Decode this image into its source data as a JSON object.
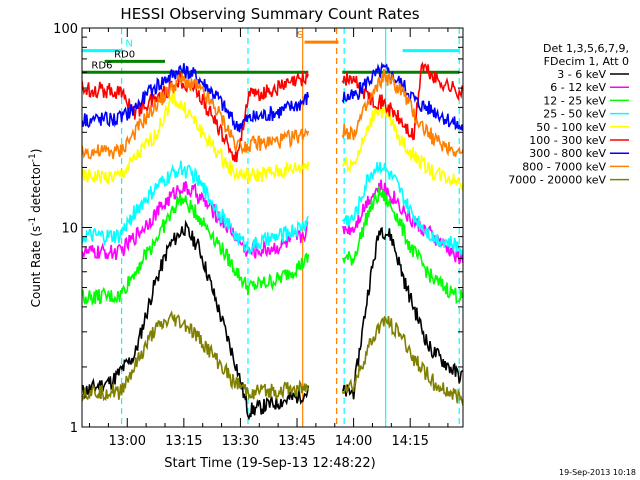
{
  "chart_data": {
    "type": "line",
    "title": "HESSI Observing Summary Count Rates",
    "xlabel": "Start Time (19-Sep-13 12:48:22)",
    "ylabel_main": "Count Rate (s",
    "ylabel_sup1": "-1",
    "ylabel_mid": " detector",
    "ylabel_sup2": "-1",
    "ylabel_end": ")",
    "footer_date": "19-Sep-2013 10:18",
    "yscale": "log",
    "ylim": [
      1,
      100
    ],
    "y_ticks": [
      {
        "value": 1,
        "label": "1"
      },
      {
        "value": 10,
        "label": "10"
      },
      {
        "value": 100,
        "label": "100"
      }
    ],
    "x_ticks": [
      {
        "minute": 12,
        "label": "13:00"
      },
      {
        "minute": 27,
        "label": "13:15"
      },
      {
        "minute": 42,
        "label": "13:30"
      },
      {
        "minute": 57,
        "label": "13:45"
      },
      {
        "minute": 72,
        "label": "14:00"
      },
      {
        "minute": 87,
        "label": "14:15"
      }
    ],
    "xlim_minutes": [
      0,
      101
    ],
    "legend_header": [
      "Det 1,3,5,6,7,9,",
      "FDecim 1, Att 0"
    ],
    "legend_position": "right",
    "series": [
      {
        "name": "3 - 6 keV",
        "color": "#000000",
        "points": [
          [
            0,
            1.5
          ],
          [
            8,
            1.7
          ],
          [
            14,
            2.3
          ],
          [
            19,
            5
          ],
          [
            23,
            8
          ],
          [
            27,
            10
          ],
          [
            31,
            8
          ],
          [
            36,
            4
          ],
          [
            41,
            2
          ],
          [
            44,
            1.2
          ],
          [
            50,
            1.3
          ],
          [
            56,
            1.4
          ],
          [
            60,
            1.5
          ],
          [
            72,
            1.5
          ],
          [
            76,
            5
          ],
          [
            79,
            10
          ],
          [
            82,
            9
          ],
          [
            86,
            5
          ],
          [
            92,
            2.5
          ],
          [
            100,
            1.8
          ]
        ]
      },
      {
        "name": "6 - 12 keV",
        "color": "#ff00ff",
        "points": [
          [
            0,
            7.5
          ],
          [
            10,
            7.5
          ],
          [
            14,
            9
          ],
          [
            20,
            12
          ],
          [
            26,
            16
          ],
          [
            30,
            15
          ],
          [
            35,
            12
          ],
          [
            41,
            9
          ],
          [
            44,
            7.5
          ],
          [
            52,
            8
          ],
          [
            58,
            9
          ],
          [
            60,
            10
          ],
          [
            72,
            10
          ],
          [
            76,
            14
          ],
          [
            79,
            16
          ],
          [
            83,
            14
          ],
          [
            87,
            11
          ],
          [
            93,
            9
          ],
          [
            100,
            7
          ]
        ]
      },
      {
        "name": "12 - 25 keV",
        "color": "#00ff00",
        "points": [
          [
            0,
            4.5
          ],
          [
            10,
            4.5
          ],
          [
            14,
            6
          ],
          [
            20,
            9
          ],
          [
            26,
            14
          ],
          [
            30,
            12
          ],
          [
            35,
            9
          ],
          [
            41,
            6
          ],
          [
            44,
            5
          ],
          [
            52,
            5.5
          ],
          [
            58,
            6.5
          ],
          [
            60,
            7
          ],
          [
            72,
            7
          ],
          [
            76,
            12
          ],
          [
            79,
            15
          ],
          [
            83,
            12
          ],
          [
            87,
            8
          ],
          [
            93,
            5.5
          ],
          [
            100,
            4.5
          ]
        ]
      },
      {
        "name": "25 - 50 keV",
        "color": "#00ffff",
        "points": [
          [
            0,
            9
          ],
          [
            10,
            9
          ],
          [
            14,
            12
          ],
          [
            20,
            16
          ],
          [
            26,
            20
          ],
          [
            30,
            18
          ],
          [
            35,
            13
          ],
          [
            41,
            9
          ],
          [
            44,
            8
          ],
          [
            52,
            9
          ],
          [
            58,
            10
          ],
          [
            60,
            11
          ],
          [
            72,
            11
          ],
          [
            76,
            18
          ],
          [
            79,
            21
          ],
          [
            83,
            17
          ],
          [
            87,
            12
          ],
          [
            93,
            9
          ],
          [
            100,
            8
          ]
        ]
      },
      {
        "name": "50 - 100 keV",
        "color": "#ffff00",
        "points": [
          [
            0,
            18
          ],
          [
            10,
            18
          ],
          [
            14,
            22
          ],
          [
            20,
            30
          ],
          [
            24,
            45
          ],
          [
            28,
            38
          ],
          [
            33,
            28
          ],
          [
            40,
            19
          ],
          [
            44,
            18
          ],
          [
            52,
            19
          ],
          [
            58,
            20
          ],
          [
            60,
            21
          ],
          [
            72,
            21
          ],
          [
            75,
            28
          ],
          [
            78,
            40
          ],
          [
            81,
            36
          ],
          [
            86,
            25
          ],
          [
            93,
            19
          ],
          [
            100,
            17
          ]
        ]
      },
      {
        "name": "100 - 300 keV",
        "color": "#ff0000",
        "points": [
          [
            0,
            50
          ],
          [
            10,
            48
          ],
          [
            14,
            38
          ],
          [
            20,
            45
          ],
          [
            26,
            55
          ],
          [
            30,
            50
          ],
          [
            36,
            32
          ],
          [
            41,
            22
          ],
          [
            44,
            45
          ],
          [
            52,
            50
          ],
          [
            58,
            55
          ],
          [
            60,
            58
          ],
          [
            72,
            55
          ],
          [
            76,
            45
          ],
          [
            80,
            42
          ],
          [
            84,
            35
          ],
          [
            88,
            28
          ],
          [
            90,
            65
          ],
          [
            94,
            55
          ],
          [
            100,
            48
          ]
        ]
      },
      {
        "name": "300 - 800 keV",
        "color": "#0000ff",
        "points": [
          [
            0,
            35
          ],
          [
            10,
            35
          ],
          [
            14,
            40
          ],
          [
            20,
            52
          ],
          [
            26,
            62
          ],
          [
            30,
            58
          ],
          [
            36,
            45
          ],
          [
            41,
            32
          ],
          [
            44,
            35
          ],
          [
            52,
            38
          ],
          [
            58,
            42
          ],
          [
            60,
            45
          ],
          [
            72,
            45
          ],
          [
            76,
            55
          ],
          [
            80,
            62
          ],
          [
            85,
            52
          ],
          [
            89,
            42
          ],
          [
            94,
            38
          ],
          [
            100,
            32
          ]
        ]
      },
      {
        "name": "800 - 7000 keV",
        "color": "#ff8000",
        "points": [
          [
            0,
            24
          ],
          [
            10,
            24
          ],
          [
            14,
            30
          ],
          [
            20,
            42
          ],
          [
            26,
            55
          ],
          [
            30,
            52
          ],
          [
            36,
            38
          ],
          [
            41,
            26
          ],
          [
            44,
            26
          ],
          [
            52,
            27
          ],
          [
            58,
            29
          ],
          [
            60,
            31
          ],
          [
            72,
            30
          ],
          [
            76,
            42
          ],
          [
            80,
            58
          ],
          [
            85,
            48
          ],
          [
            89,
            34
          ],
          [
            94,
            27
          ],
          [
            100,
            24
          ]
        ]
      },
      {
        "name": "7000 - 20000 keV",
        "color": "#808000",
        "points": [
          [
            0,
            1.5
          ],
          [
            10,
            1.5
          ],
          [
            14,
            2
          ],
          [
            19,
            3
          ],
          [
            24,
            3.5
          ],
          [
            28,
            3.2
          ],
          [
            33,
            2.5
          ],
          [
            40,
            1.7
          ],
          [
            44,
            1.5
          ],
          [
            72,
            1.6
          ],
          [
            76,
            2.5
          ],
          [
            80,
            3.5
          ],
          [
            84,
            3
          ],
          [
            88,
            2.2
          ],
          [
            94,
            1.6
          ],
          [
            100,
            1.4
          ]
        ]
      }
    ],
    "annotation_bars": [
      {
        "label": "N",
        "color": "#00ffff",
        "y": 77,
        "segments": [
          [
            0,
            10.5
          ],
          [
            85,
            100
          ]
        ],
        "label_minute": 11.5
      },
      {
        "label": "RD0",
        "color": "#008000",
        "y": 68,
        "segments": [
          [
            6,
            22
          ]
        ],
        "label_minute": 8.5
      },
      {
        "label": "RD6",
        "color": "#008000",
        "y": 60,
        "segments": [
          [
            0,
            60
          ],
          [
            69,
            100
          ]
        ],
        "label_minute": 2.5
      },
      {
        "label": "S",
        "color": "#ff8000",
        "y": 85,
        "segments": [
          [
            59,
            68
          ]
        ],
        "label_minute": 57
      }
    ],
    "vertical_lines": [
      {
        "minute": 10.5,
        "color": "#00ffff",
        "style": "dashed"
      },
      {
        "minute": 44,
        "color": "#00ffff",
        "style": "dashed"
      },
      {
        "minute": 58.5,
        "color": "#ff8000",
        "style": "solid"
      },
      {
        "minute": 67.5,
        "color": "#ff8000",
        "style": "dashed"
      },
      {
        "minute": 69.5,
        "color": "#00ffff",
        "style": "dashed"
      },
      {
        "minute": 80.5,
        "color": "#00ffff",
        "style": "solid"
      },
      {
        "minute": 100,
        "color": "#00ffff",
        "style": "dashed"
      }
    ],
    "gap_minutes": [
      60,
      69
    ]
  }
}
